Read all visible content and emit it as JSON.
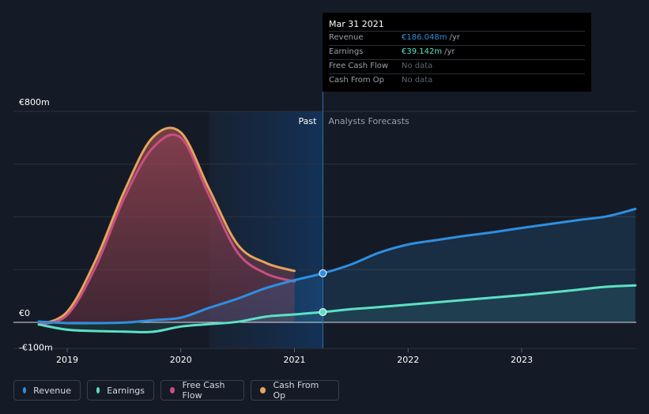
{
  "tooltip": {
    "date": "Mar 31 2021",
    "rows": [
      {
        "label": "Revenue",
        "value": "€186.048m",
        "unit": "/yr",
        "color": "#2f8fe0"
      },
      {
        "label": "Earnings",
        "value": "€39.142m",
        "unit": "/yr",
        "color": "#5ce0c6"
      },
      {
        "label": "Free Cash Flow",
        "value": "No data",
        "unit": "",
        "color": ""
      },
      {
        "label": "Cash From Op",
        "value": "No data",
        "unit": "",
        "color": ""
      }
    ]
  },
  "legend": [
    {
      "label": "Revenue",
      "color": "#2f8fe0"
    },
    {
      "label": "Earnings",
      "color": "#5ce0c6"
    },
    {
      "label": "Free Cash Flow",
      "color": "#c84e82"
    },
    {
      "label": "Cash From Op",
      "color": "#e4a55c"
    }
  ],
  "chart_data": {
    "type": "line",
    "title": "",
    "xlabel": "",
    "ylabel": "",
    "ylim": [
      -100,
      800
    ],
    "xlim": [
      2018.7,
      2024.0
    ],
    "x_ticks": [
      2019,
      2020,
      2021,
      2022,
      2023
    ],
    "y_labels": [
      {
        "value": 800,
        "label": "€800m"
      },
      {
        "value": 0,
        "label": "€0"
      },
      {
        "value": -100,
        "label": "-€100m"
      }
    ],
    "past_label": "Past",
    "forecast_label": "Analysts Forecasts",
    "divider_x": 2021.25,
    "highlight_start_x": 2020.25,
    "highlight_end_x": 2021.25,
    "series": [
      {
        "name": "Revenue",
        "color": "#2f8fe0",
        "points": [
          [
            2018.75,
            3
          ],
          [
            2019.0,
            -3
          ],
          [
            2019.25,
            -3
          ],
          [
            2019.5,
            -1
          ],
          [
            2019.75,
            8
          ],
          [
            2020.0,
            18
          ],
          [
            2020.25,
            55
          ],
          [
            2020.5,
            90
          ],
          [
            2020.75,
            130
          ],
          [
            2021.0,
            160
          ],
          [
            2021.25,
            186
          ],
          [
            2021.5,
            220
          ],
          [
            2021.75,
            265
          ],
          [
            2022.0,
            295
          ],
          [
            2022.25,
            312
          ],
          [
            2022.5,
            328
          ],
          [
            2022.75,
            342
          ],
          [
            2023.0,
            358
          ],
          [
            2023.25,
            373
          ],
          [
            2023.5,
            388
          ],
          [
            2023.75,
            402
          ],
          [
            2024.0,
            430
          ]
        ]
      },
      {
        "name": "Earnings",
        "color": "#5ce0c6",
        "points": [
          [
            2018.75,
            -8
          ],
          [
            2019.0,
            -28
          ],
          [
            2019.25,
            -33
          ],
          [
            2019.5,
            -35
          ],
          [
            2019.75,
            -36
          ],
          [
            2020.0,
            -16
          ],
          [
            2020.25,
            -7
          ],
          [
            2020.5,
            2
          ],
          [
            2020.75,
            22
          ],
          [
            2021.0,
            30
          ],
          [
            2021.25,
            39
          ],
          [
            2021.5,
            50
          ],
          [
            2021.75,
            58
          ],
          [
            2022.0,
            67
          ],
          [
            2022.25,
            76
          ],
          [
            2022.5,
            85
          ],
          [
            2022.75,
            94
          ],
          [
            2023.0,
            103
          ],
          [
            2023.25,
            113
          ],
          [
            2023.5,
            124
          ],
          [
            2023.75,
            135
          ],
          [
            2024.0,
            140
          ]
        ]
      },
      {
        "name": "Free Cash Flow",
        "color": "#c84e82",
        "points": [
          [
            2018.75,
            -8
          ],
          [
            2019.0,
            28
          ],
          [
            2019.25,
            210
          ],
          [
            2019.5,
            470
          ],
          [
            2019.75,
            660
          ],
          [
            2020.0,
            700
          ],
          [
            2020.25,
            480
          ],
          [
            2020.5,
            265
          ],
          [
            2020.75,
            185
          ],
          [
            2021.0,
            155
          ]
        ]
      },
      {
        "name": "Cash From Op",
        "color": "#e4a55c",
        "points": [
          [
            2018.75,
            -8
          ],
          [
            2019.0,
            40
          ],
          [
            2019.25,
            235
          ],
          [
            2019.5,
            495
          ],
          [
            2019.75,
            700
          ],
          [
            2020.0,
            720
          ],
          [
            2020.25,
            505
          ],
          [
            2020.5,
            295
          ],
          [
            2020.75,
            225
          ],
          [
            2021.0,
            195
          ]
        ]
      }
    ]
  }
}
